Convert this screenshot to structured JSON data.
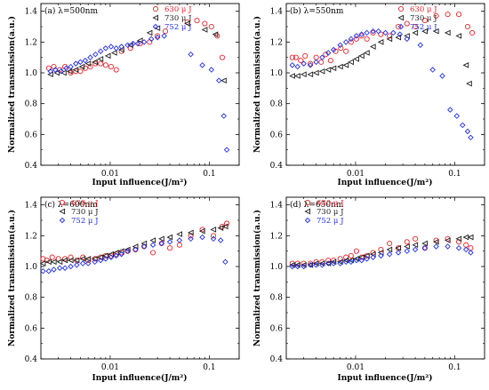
{
  "colors": {
    "s630": "#e8252b",
    "s730": "#1a1a1a",
    "s752": "#1f2ee8"
  },
  "chart_data": [
    {
      "type": "scatter",
      "panel_label": "(a) λ=500nm",
      "xlabel": "Input influence(J/m²)",
      "ylabel": "Normalized transmission(a.u.)",
      "xscale": "log",
      "xlim": [
        0.002,
        0.2
      ],
      "ylim": [
        0.4,
        1.45
      ],
      "yticks": [
        "0.4",
        "0.6",
        "0.8",
        "1.0",
        "1.2",
        "1.4"
      ],
      "xticks": [
        "0.01",
        "0.1"
      ],
      "legend_position": "top-right",
      "series": [
        {
          "name": "630 μ J",
          "marker": "circle",
          "x": [
            0.0024,
            0.0027,
            0.0031,
            0.0035,
            0.004,
            0.0045,
            0.005,
            0.0056,
            0.0063,
            0.0071,
            0.008,
            0.009,
            0.0102,
            0.0115,
            0.013,
            0.016,
            0.02,
            0.025,
            0.03,
            0.036,
            0.06,
            0.075,
            0.09,
            0.105,
            0.12,
            0.135
          ],
          "y": [
            1.03,
            1.04,
            1.02,
            1.04,
            1.0,
            1.01,
            1.01,
            1.03,
            1.04,
            1.06,
            1.06,
            1.05,
            1.04,
            1.02,
            1.14,
            1.16,
            1.19,
            1.2,
            1.24,
            1.27,
            1.33,
            1.34,
            1.32,
            1.3,
            1.24,
            1.1
          ]
        },
        {
          "name": "730 μ J",
          "marker": "triangle-left",
          "x": [
            0.0025,
            0.0029,
            0.0034,
            0.0039,
            0.0045,
            0.0052,
            0.006,
            0.007,
            0.008,
            0.0095,
            0.011,
            0.013,
            0.016,
            0.02,
            0.025,
            0.03,
            0.06,
            0.09,
            0.115,
            0.14
          ],
          "y": [
            0.99,
            1.0,
            1.0,
            1.01,
            1.02,
            1.04,
            1.06,
            1.07,
            1.09,
            1.11,
            1.13,
            1.15,
            1.18,
            1.21,
            1.26,
            1.29,
            1.32,
            1.28,
            1.25,
            0.95
          ]
        },
        {
          "name": "752 μ J",
          "marker": "diamond",
          "x": [
            0.0025,
            0.0028,
            0.0032,
            0.0036,
            0.004,
            0.0045,
            0.005,
            0.0056,
            0.0063,
            0.0071,
            0.008,
            0.009,
            0.0102,
            0.0115,
            0.013,
            0.015,
            0.017,
            0.019,
            0.022,
            0.026,
            0.03,
            0.035,
            0.065,
            0.085,
            0.105,
            0.125,
            0.14,
            0.15
          ],
          "y": [
            1.01,
            1.02,
            1.01,
            1.03,
            1.04,
            1.06,
            1.07,
            1.08,
            1.1,
            1.12,
            1.14,
            1.16,
            1.17,
            1.16,
            1.17,
            1.18,
            1.19,
            1.19,
            1.2,
            1.22,
            1.23,
            1.24,
            1.12,
            1.05,
            1.02,
            0.95,
            0.72,
            0.5
          ]
        }
      ]
    },
    {
      "type": "scatter",
      "panel_label": "(b) λ=550nm",
      "xlabel": "Input influence(J/m²)",
      "ylabel": "Normalized transmission(a.u.)",
      "xscale": "log",
      "xlim": [
        0.002,
        0.2
      ],
      "ylim": [
        0.4,
        1.45
      ],
      "yticks": [
        "0.4",
        "0.6",
        "0.8",
        "1.0",
        "1.2",
        "1.4"
      ],
      "xticks": [
        "0.01",
        "0.1"
      ],
      "legend_position": "top-right",
      "series": [
        {
          "name": "630 μ J",
          "marker": "circle",
          "x": [
            0.0023,
            0.0025,
            0.0028,
            0.0031,
            0.0035,
            0.004,
            0.0045,
            0.005,
            0.0056,
            0.0063,
            0.0071,
            0.008,
            0.009,
            0.0102,
            0.0115,
            0.013,
            0.015,
            0.018,
            0.022,
            0.027,
            0.033,
            0.04,
            0.05,
            0.065,
            0.085,
            0.11,
            0.135,
            0.15
          ],
          "y": [
            1.1,
            1.1,
            1.08,
            1.11,
            1.06,
            1.1,
            1.07,
            1.12,
            1.08,
            1.14,
            1.16,
            1.14,
            1.2,
            1.22,
            1.24,
            1.22,
            1.26,
            1.25,
            1.24,
            1.3,
            1.32,
            1.3,
            1.34,
            1.37,
            1.38,
            1.38,
            1.3,
            1.26
          ]
        },
        {
          "name": "730 μ J",
          "marker": "triangle-left",
          "x": [
            0.0023,
            0.0026,
            0.003,
            0.0035,
            0.004,
            0.0046,
            0.0053,
            0.006,
            0.007,
            0.008,
            0.009,
            0.0102,
            0.0115,
            0.013,
            0.015,
            0.018,
            0.022,
            0.027,
            0.033,
            0.04,
            0.05,
            0.065,
            0.085,
            0.11,
            0.13,
            0.14
          ],
          "y": [
            0.98,
            0.98,
            0.99,
            0.99,
            1.0,
            1.01,
            1.02,
            1.03,
            1.04,
            1.05,
            1.07,
            1.09,
            1.11,
            1.13,
            1.17,
            1.2,
            1.22,
            1.23,
            1.24,
            1.26,
            1.27,
            1.27,
            1.26,
            1.24,
            1.05,
            0.93
          ]
        },
        {
          "name": "752 μ J",
          "marker": "diamond",
          "x": [
            0.0023,
            0.0026,
            0.003,
            0.0035,
            0.004,
            0.0046,
            0.0053,
            0.006,
            0.007,
            0.008,
            0.009,
            0.0102,
            0.0115,
            0.013,
            0.015,
            0.017,
            0.02,
            0.024,
            0.028,
            0.033,
            0.045,
            0.06,
            0.075,
            0.09,
            0.105,
            0.12,
            0.135,
            0.145
          ],
          "y": [
            1.05,
            1.04,
            1.06,
            1.05,
            1.07,
            1.1,
            1.13,
            1.15,
            1.18,
            1.2,
            1.22,
            1.24,
            1.25,
            1.26,
            1.27,
            1.27,
            1.26,
            1.26,
            1.25,
            1.22,
            1.18,
            1.02,
            0.98,
            0.76,
            0.72,
            0.66,
            0.62,
            0.58
          ]
        }
      ]
    },
    {
      "type": "scatter",
      "panel_label": "(c) λ=600nm",
      "xlabel": "Input influence(J/m²)",
      "ylabel": "Normalized transmission(a.u.)",
      "xscale": "log",
      "xlim": [
        0.002,
        0.2
      ],
      "ylim": [
        0.4,
        1.45
      ],
      "yticks": [
        "0.4",
        "0.6",
        "0.8",
        "1.0",
        "1.2",
        "1.4"
      ],
      "xticks": [
        "0.01",
        "0.1"
      ],
      "legend_position": "top-left",
      "series": [
        {
          "name": "630 μ J",
          "marker": "circle",
          "x": [
            0.0021,
            0.0023,
            0.0026,
            0.003,
            0.0035,
            0.004,
            0.0046,
            0.0053,
            0.006,
            0.007,
            0.008,
            0.009,
            0.0102,
            0.0115,
            0.013,
            0.015,
            0.018,
            0.022,
            0.027,
            0.033,
            0.04,
            0.05,
            0.065,
            0.085,
            0.11,
            0.135,
            0.15
          ],
          "y": [
            1.05,
            1.04,
            1.06,
            1.05,
            1.05,
            1.06,
            1.04,
            1.06,
            1.04,
            1.05,
            1.06,
            1.07,
            1.07,
            1.08,
            1.09,
            1.1,
            1.11,
            1.13,
            1.09,
            1.15,
            1.12,
            1.14,
            1.2,
            1.24,
            1.2,
            1.26,
            1.28
          ]
        },
        {
          "name": "730 μ J",
          "marker": "triangle-left",
          "x": [
            0.0021,
            0.0024,
            0.0027,
            0.0031,
            0.0035,
            0.004,
            0.0046,
            0.0053,
            0.006,
            0.007,
            0.008,
            0.009,
            0.0102,
            0.0115,
            0.013,
            0.015,
            0.018,
            0.022,
            0.027,
            0.033,
            0.04,
            0.05,
            0.065,
            0.085,
            0.11,
            0.13,
            0.145
          ],
          "y": [
            1.02,
            1.03,
            1.03,
            1.03,
            1.04,
            1.04,
            1.04,
            1.05,
            1.05,
            1.05,
            1.06,
            1.07,
            1.08,
            1.09,
            1.1,
            1.11,
            1.13,
            1.15,
            1.17,
            1.18,
            1.19,
            1.21,
            1.22,
            1.23,
            1.24,
            1.25,
            1.26
          ]
        },
        {
          "name": "752 μ J",
          "marker": "diamond",
          "x": [
            0.0021,
            0.0024,
            0.0027,
            0.0031,
            0.0035,
            0.004,
            0.0046,
            0.0053,
            0.006,
            0.007,
            0.008,
            0.009,
            0.0102,
            0.0115,
            0.013,
            0.015,
            0.018,
            0.022,
            0.027,
            0.033,
            0.04,
            0.05,
            0.065,
            0.085,
            0.11,
            0.13,
            0.145
          ],
          "y": [
            0.97,
            0.97,
            0.98,
            0.99,
            0.99,
            1.0,
            1.01,
            1.02,
            1.02,
            1.03,
            1.04,
            1.05,
            1.06,
            1.07,
            1.08,
            1.1,
            1.11,
            1.13,
            1.14,
            1.15,
            1.16,
            1.17,
            1.18,
            1.19,
            1.18,
            1.17,
            1.03
          ]
        }
      ]
    },
    {
      "type": "scatter",
      "panel_label": "(d) λ=650nm",
      "xlabel": "Input influence(J/m²)",
      "ylabel": "Normalized transmission(a.u.)",
      "xscale": "log",
      "xlim": [
        0.002,
        0.2
      ],
      "ylim": [
        0.4,
        1.45
      ],
      "yticks": [
        "0.4",
        "0.6",
        "0.8",
        "1.0",
        "1.2",
        "1.4"
      ],
      "xticks": [
        "0.01",
        "0.1"
      ],
      "legend_position": "top-left",
      "series": [
        {
          "name": "630 μ J",
          "marker": "circle",
          "x": [
            0.0023,
            0.0026,
            0.003,
            0.0035,
            0.004,
            0.0046,
            0.0053,
            0.006,
            0.007,
            0.008,
            0.009,
            0.0102,
            0.0115,
            0.013,
            0.015,
            0.018,
            0.022,
            0.027,
            0.033,
            0.04,
            0.05,
            0.065,
            0.085,
            0.11,
            0.13,
            0.145
          ],
          "y": [
            1.02,
            1.02,
            1.02,
            1.02,
            1.03,
            1.03,
            1.04,
            1.04,
            1.05,
            1.06,
            1.07,
            1.1,
            1.06,
            1.07,
            1.09,
            1.11,
            1.15,
            1.12,
            1.16,
            1.18,
            1.12,
            1.17,
            1.18,
            1.16,
            1.14,
            1.12
          ]
        },
        {
          "name": "730 μ J",
          "marker": "triangle-left",
          "x": [
            0.0023,
            0.0026,
            0.003,
            0.0035,
            0.004,
            0.0046,
            0.0053,
            0.006,
            0.007,
            0.008,
            0.009,
            0.0102,
            0.0115,
            0.013,
            0.015,
            0.018,
            0.022,
            0.027,
            0.033,
            0.04,
            0.05,
            0.065,
            0.085,
            0.11,
            0.13,
            0.145
          ],
          "y": [
            1.01,
            1.01,
            1.01,
            1.01,
            1.02,
            1.02,
            1.02,
            1.03,
            1.03,
            1.04,
            1.04,
            1.05,
            1.06,
            1.07,
            1.08,
            1.09,
            1.11,
            1.12,
            1.13,
            1.14,
            1.15,
            1.16,
            1.17,
            1.18,
            1.19,
            1.19
          ]
        },
        {
          "name": "752 μ J",
          "marker": "diamond",
          "x": [
            0.0023,
            0.0026,
            0.003,
            0.0035,
            0.004,
            0.0046,
            0.0053,
            0.006,
            0.007,
            0.008,
            0.009,
            0.0102,
            0.0115,
            0.013,
            0.015,
            0.018,
            0.022,
            0.027,
            0.033,
            0.04,
            0.05,
            0.065,
            0.085,
            0.11,
            0.13,
            0.145
          ],
          "y": [
            1.0,
            1.0,
            1.0,
            1.01,
            1.01,
            1.01,
            1.02,
            1.02,
            1.02,
            1.03,
            1.03,
            1.04,
            1.04,
            1.05,
            1.06,
            1.07,
            1.08,
            1.09,
            1.1,
            1.11,
            1.12,
            1.13,
            1.13,
            1.12,
            1.11,
            1.09
          ]
        }
      ]
    }
  ]
}
